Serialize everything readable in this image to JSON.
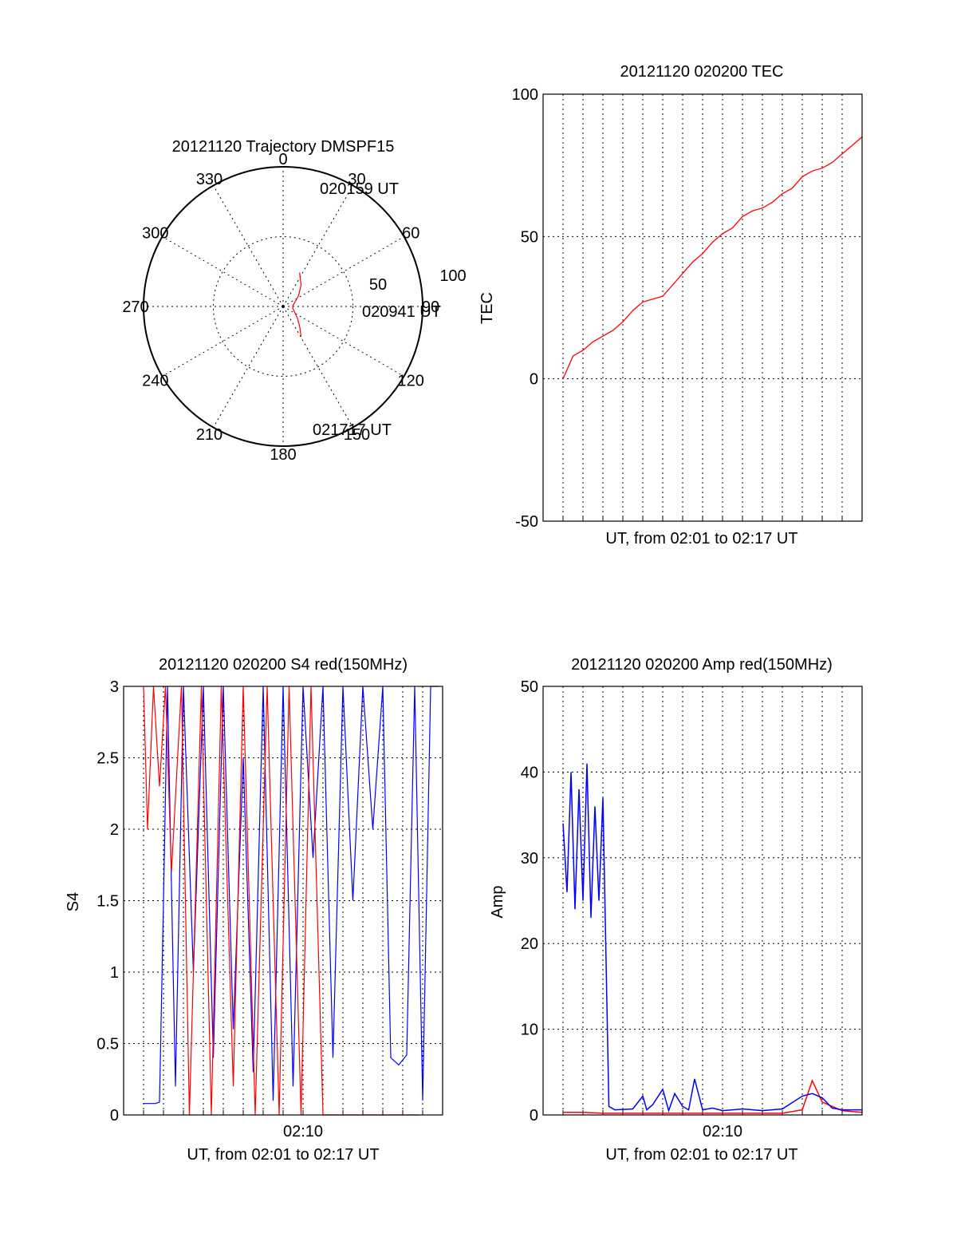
{
  "chart_data": [
    {
      "id": "trajectory",
      "type": "polar",
      "title": "20121120 Trajectory DMSPF15",
      "angle_labels": [
        "0",
        "30",
        "60",
        "90",
        "120",
        "150",
        "180",
        "210",
        "240",
        "270",
        "300",
        "330"
      ],
      "radius_labels": [
        "50",
        "100"
      ],
      "radius_range": [
        0,
        100
      ],
      "annotations": [
        "020159 UT",
        "020941 UT",
        "021717 UT"
      ],
      "series": [
        {
          "color": "#ff0000",
          "points": [
            {
              "az": 26,
              "el": 27
            },
            {
              "az": 40,
              "el": 20
            },
            {
              "az": 55,
              "el": 13.5
            },
            {
              "az": 70,
              "el": 9
            },
            {
              "az": 85,
              "el": 7
            },
            {
              "az": 100,
              "el": 7
            },
            {
              "az": 115,
              "el": 9
            },
            {
              "az": 130,
              "el": 13.5
            },
            {
              "az": 141,
              "el": 19
            },
            {
              "az": 149,
              "el": 25
            }
          ]
        }
      ],
      "grid": true
    },
    {
      "id": "tec",
      "type": "line",
      "title": "20121120 020200 TEC",
      "xlabel": "UT, from 02:01 to 02:17 UT",
      "ylabel": "TEC",
      "ylim": [
        -50,
        100
      ],
      "yticks": [
        "100",
        "50",
        "0",
        "-50"
      ],
      "xrange_minutes": [
        0,
        16
      ],
      "grid": true,
      "series": [
        {
          "color": "#ff0000",
          "x": [
            1,
            1.5,
            2,
            2.5,
            3,
            3.5,
            4,
            4.5,
            5,
            5.5,
            6,
            6.5,
            7,
            7.5,
            8,
            8.5,
            9,
            9.5,
            10,
            10.5,
            11,
            11.5,
            12,
            12.5,
            13,
            13.5,
            14,
            14.5,
            15,
            15.5,
            16
          ],
          "y": [
            0,
            8,
            10,
            13,
            15,
            17,
            20,
            24,
            27,
            28,
            29,
            33,
            37,
            41,
            44,
            48,
            51,
            53,
            57,
            59,
            60,
            62,
            65,
            67,
            71,
            73,
            74,
            76,
            79,
            82,
            85
          ]
        }
      ]
    },
    {
      "id": "s4",
      "type": "line",
      "title": "20121120 020200 S4 red(150MHz)",
      "xlabel": "UT, from 02:01 to 02:17 UT",
      "ylabel": "S4",
      "ylim": [
        0,
        3
      ],
      "yticks": [
        "3",
        "2.5",
        "2",
        "1.5",
        "1",
        "0.5",
        "0"
      ],
      "xtick_label": "02:10",
      "xtick_minutes": 9,
      "xrange_minutes": [
        0,
        16
      ],
      "grid": true,
      "series": [
        {
          "color": "#0000ff",
          "x": [
            1,
            1.4,
            1.6,
            1.8,
            2.0,
            2.2,
            2.6,
            3.0,
            3.5,
            4.0,
            4.5,
            5.0,
            5.5,
            6.0,
            6.5,
            7.0,
            7.5,
            8.0,
            8.5,
            9.0,
            9.5,
            10.0,
            10.5,
            11.0,
            11.5,
            12.0,
            12.5,
            13.0,
            13.4,
            13.8,
            14.2,
            14.6,
            15.0,
            15.4,
            15.8
          ],
          "y": [
            0.08,
            0.08,
            0.08,
            0.09,
            1.5,
            3,
            0.2,
            3,
            1.0,
            3,
            0.4,
            3,
            0.6,
            2.5,
            0.3,
            3,
            0.1,
            3,
            0.2,
            3,
            1.8,
            3,
            0.4,
            3,
            1.5,
            3,
            2.0,
            3,
            0.4,
            0.35,
            0.42,
            3,
            0.1,
            3,
            3
          ]
        },
        {
          "color": "#ff0000",
          "x": [
            1,
            1.2,
            1.5,
            1.8,
            2.1,
            2.4,
            2.9,
            3.3,
            3.9,
            4.4,
            4.9,
            5.5,
            6.0,
            6.6,
            7.2,
            7.8,
            8.3,
            8.9,
            9.4,
            10.0,
            13.0,
            14.8
          ],
          "y": [
            3,
            2.0,
            3,
            2.3,
            3,
            1.7,
            3,
            0.0,
            3,
            0.0,
            3,
            0.2,
            3,
            0.0,
            3,
            0.0,
            3,
            0.0,
            3,
            0.0,
            0.0,
            0.0
          ]
        }
      ]
    },
    {
      "id": "amp",
      "type": "line",
      "title": "20121120 020200 Amp red(150MHz)",
      "xlabel": "UT, from 02:01 to 02:17 UT",
      "ylabel": "Amp",
      "ylim": [
        0,
        50
      ],
      "yticks": [
        "50",
        "40",
        "30",
        "20",
        "10",
        "0"
      ],
      "xtick_label": "02:10",
      "xtick_minutes": 9,
      "xrange_minutes": [
        0,
        16
      ],
      "grid": true,
      "series": [
        {
          "color": "#0000ff",
          "x": [
            1,
            1.2,
            1.4,
            1.6,
            1.8,
            2.0,
            2.2,
            2.4,
            2.6,
            2.8,
            3.0,
            3.3,
            3.6,
            4.5,
            5.0,
            5.2,
            5.5,
            6.0,
            6.3,
            6.6,
            7.0,
            7.3,
            7.6,
            8.0,
            8.5,
            9.0,
            9.5,
            10.0,
            11.0,
            12.0,
            13.0,
            13.5,
            14.0,
            14.5,
            15.0,
            16.0
          ],
          "y": [
            34,
            26,
            40,
            24,
            38,
            25,
            41,
            23,
            36,
            25,
            37,
            1.0,
            0.6,
            0.7,
            2.2,
            0.6,
            1.2,
            3.0,
            0.5,
            2.5,
            1.0,
            0.6,
            4.2,
            0.6,
            0.8,
            0.5,
            0.6,
            0.7,
            0.5,
            0.7,
            2.2,
            2.5,
            2.0,
            0.8,
            0.6,
            0.6
          ]
        },
        {
          "color": "#ff0000",
          "x": [
            1,
            2,
            3,
            4,
            5,
            6,
            7,
            8,
            9,
            10,
            11,
            12,
            13,
            13.5,
            14,
            15,
            16
          ],
          "y": [
            0.3,
            0.3,
            0.2,
            0.2,
            0.2,
            0.2,
            0.2,
            0.2,
            0.2,
            0.2,
            0.2,
            0.2,
            0.6,
            4.0,
            1.5,
            0.5,
            0.3
          ]
        }
      ]
    }
  ]
}
